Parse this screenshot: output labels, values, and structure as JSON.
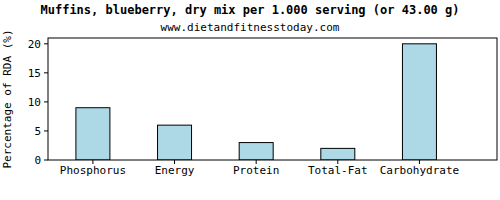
{
  "chart_data": {
    "type": "bar",
    "title": "Muffins, blueberry, dry mix per 1.000 serving (or 43.00 g)",
    "subtitle": "www.dietandfitnesstoday.com",
    "y_label": "Percentage of RDA (%)",
    "categories": [
      "Phosphorus",
      "Energy",
      "Protein",
      "Total-Fat",
      "Carbohydrate"
    ],
    "values": [
      9,
      6,
      3,
      2,
      20
    ],
    "color": "#add8e6",
    "ylim": [
      0,
      21
    ],
    "yticks": [
      0,
      5,
      10,
      15,
      20
    ],
    "grid": false
  }
}
